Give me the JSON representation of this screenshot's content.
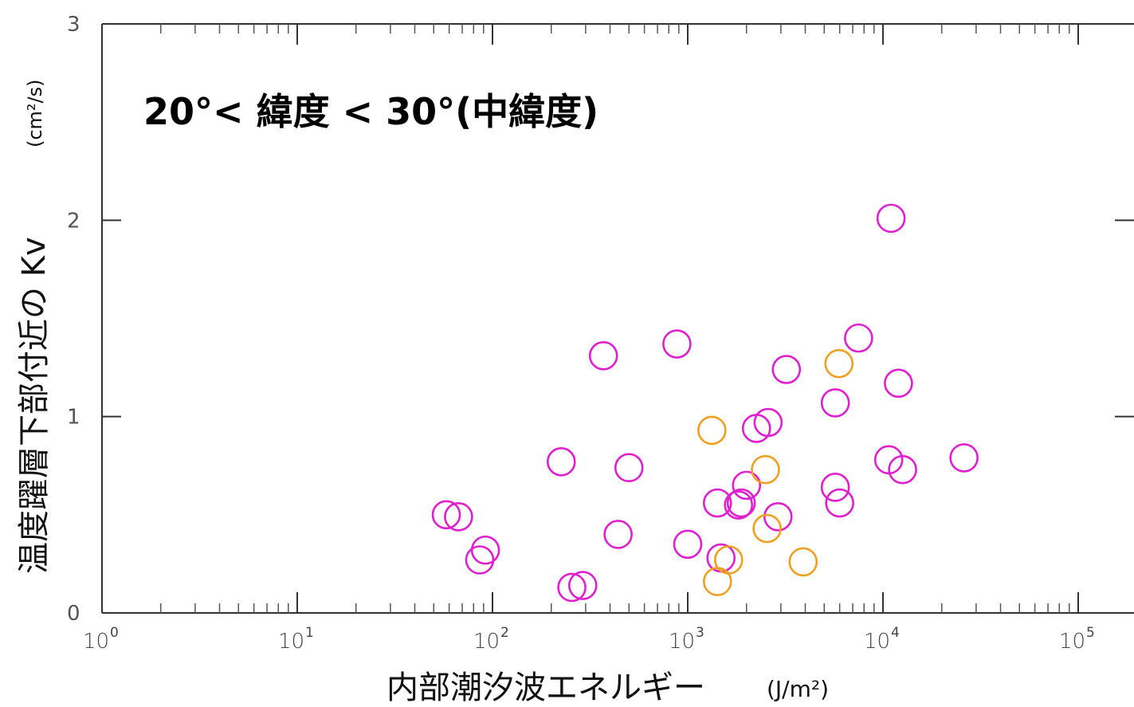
{
  "chart_data": {
    "type": "scatter",
    "title": "",
    "annotation": "20°< 緯度 < 30°(中緯度)",
    "xlabel": "内部潮汐波エネルギー",
    "xlabel_unit": "(J/m²)",
    "ylabel": "温度躍層下部付近の Kv",
    "ylabel_unit": "(cm²/s)",
    "x_scale": "log",
    "xlim": [
      1,
      100000
    ],
    "ylim": [
      0,
      3
    ],
    "x_tick_labels": [
      {
        "base": "10",
        "exp": "0"
      },
      {
        "base": "10",
        "exp": "1"
      },
      {
        "base": "10",
        "exp": "2"
      },
      {
        "base": "10",
        "exp": "3"
      },
      {
        "base": "10",
        "exp": "4"
      },
      {
        "base": "10",
        "exp": "5"
      }
    ],
    "y_ticks": [
      "0",
      "1",
      "2",
      "3"
    ],
    "grid": false,
    "series": [
      {
        "color": "#e020d0",
        "points": [
          [
            58,
            0.5
          ],
          [
            67,
            0.49
          ],
          [
            86,
            0.27
          ],
          [
            92,
            0.32
          ],
          [
            255,
            0.13
          ],
          [
            290,
            0.14
          ],
          [
            225,
            0.77
          ],
          [
            370,
            1.31
          ],
          [
            440,
            0.4
          ],
          [
            500,
            0.74
          ],
          [
            880,
            1.37
          ],
          [
            1000,
            0.35
          ],
          [
            1420,
            0.56
          ],
          [
            1480,
            0.28
          ],
          [
            1820,
            0.55
          ],
          [
            1880,
            0.56
          ],
          [
            2000,
            0.65
          ],
          [
            2250,
            0.94
          ],
          [
            2580,
            0.97
          ],
          [
            2900,
            0.49
          ],
          [
            3200,
            1.24
          ],
          [
            5700,
            1.07
          ],
          [
            5700,
            0.64
          ],
          [
            6000,
            0.56
          ],
          [
            7500,
            1.4
          ],
          [
            10700,
            0.78
          ],
          [
            11000,
            2.01
          ],
          [
            12000,
            1.17
          ],
          [
            12600,
            0.73
          ],
          [
            26000,
            0.79
          ]
        ]
      },
      {
        "color": "#f0a020",
        "points": [
          [
            1330,
            0.93
          ],
          [
            1420,
            0.16
          ],
          [
            1620,
            0.27
          ],
          [
            2500,
            0.73
          ],
          [
            2550,
            0.43
          ],
          [
            3900,
            0.26
          ],
          [
            5950,
            1.27
          ]
        ]
      }
    ]
  }
}
